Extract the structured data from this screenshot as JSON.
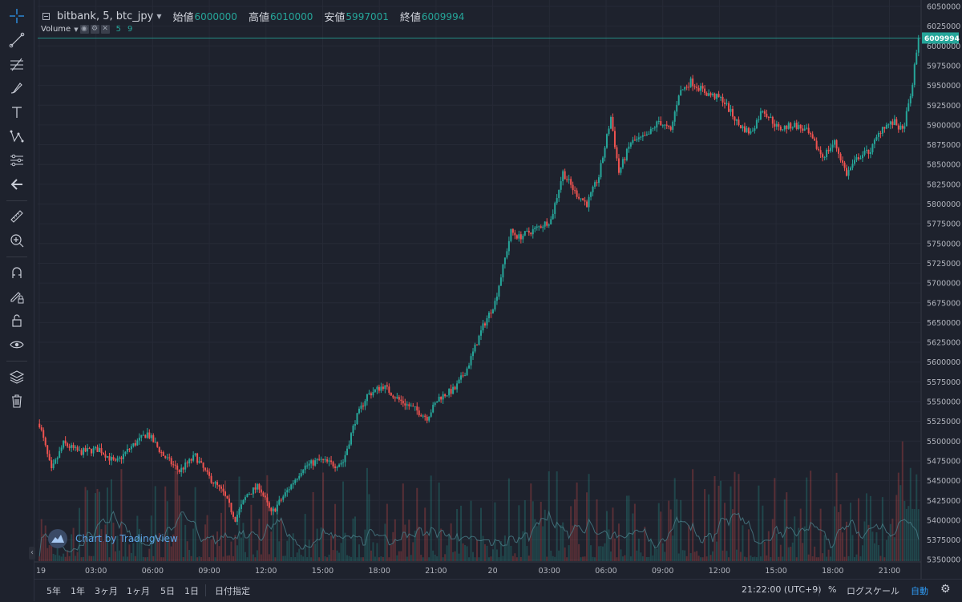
{
  "legend": {
    "symbol": "bitbank, 5, btc_jpy",
    "open_label": "始値",
    "open": "6000000",
    "high_label": "高値",
    "high": "6010000",
    "low_label": "安値",
    "low": "5997001",
    "close_label": "終値",
    "close": "6009994"
  },
  "volume_legend": {
    "label": "Volume",
    "v1": "5",
    "v2": "9"
  },
  "watermark": "Chart by TradingView",
  "price_tag": "6009994",
  "bottom": {
    "ranges": [
      "5年",
      "1年",
      "3ヶ月",
      "1ヶ月",
      "5日",
      "1日"
    ],
    "goto_date": "日付指定",
    "time": "21:22:00 (UTC+9)",
    "percent": "%",
    "log": "ログスケール",
    "auto": "自動"
  },
  "colors": {
    "up": "#26a69a",
    "down": "#ef5350",
    "background": "#1e222d",
    "grid": "#262a36",
    "price_line": "#26a69a"
  },
  "tools": [
    "crosshair-icon",
    "trend-line-icon",
    "fib-icon",
    "brush-icon",
    "text-icon",
    "pattern-icon",
    "prediction-icon",
    "back-arrow-icon",
    "ruler-icon",
    "zoom-in-icon",
    "magnet-icon",
    "lock-drawing-icon",
    "lock-icon",
    "eye-icon",
    "layers-icon",
    "trash-icon"
  ],
  "chart_data": {
    "type": "candlestick",
    "y_ticks": [
      6050000,
      6025000,
      6000000,
      5975000,
      5950000,
      5925000,
      5900000,
      5875000,
      5850000,
      5825000,
      5800000,
      5775000,
      5750000,
      5725000,
      5700000,
      5675000,
      5650000,
      5625000,
      5600000,
      5575000,
      5550000,
      5525000,
      5500000,
      5475000,
      5450000,
      5425000,
      5400000,
      5375000,
      5350000
    ],
    "x_ticks": [
      "19",
      "03:00",
      "06:00",
      "09:00",
      "12:00",
      "15:00",
      "18:00",
      "21:00",
      "20",
      "03:00",
      "06:00",
      "09:00",
      "12:00",
      "15:00",
      "18:00",
      "21:00"
    ],
    "ylim": [
      5340000,
      6060000
    ],
    "last_price": 6009994,
    "close_path": [
      {
        "t": 0,
        "p": 5522000
      },
      {
        "t": 6,
        "p": 5462000
      },
      {
        "t": 12,
        "p": 5497000
      },
      {
        "t": 20,
        "p": 5486000
      },
      {
        "t": 30,
        "p": 5490000
      },
      {
        "t": 38,
        "p": 5472000
      },
      {
        "t": 46,
        "p": 5493000
      },
      {
        "t": 54,
        "p": 5510000
      },
      {
        "t": 62,
        "p": 5482000
      },
      {
        "t": 70,
        "p": 5462000
      },
      {
        "t": 78,
        "p": 5481000
      },
      {
        "t": 84,
        "p": 5457000
      },
      {
        "t": 92,
        "p": 5434000
      },
      {
        "t": 98,
        "p": 5402000
      },
      {
        "t": 104,
        "p": 5433000
      },
      {
        "t": 110,
        "p": 5443000
      },
      {
        "t": 116,
        "p": 5408000
      },
      {
        "t": 124,
        "p": 5437000
      },
      {
        "t": 132,
        "p": 5467000
      },
      {
        "t": 140,
        "p": 5476000
      },
      {
        "t": 148,
        "p": 5470000
      },
      {
        "t": 152,
        "p": 5474000
      },
      {
        "t": 158,
        "p": 5526000
      },
      {
        "t": 164,
        "p": 5558000
      },
      {
        "t": 172,
        "p": 5570000
      },
      {
        "t": 180,
        "p": 5552000
      },
      {
        "t": 188,
        "p": 5540000
      },
      {
        "t": 194,
        "p": 5530000
      },
      {
        "t": 200,
        "p": 5555000
      },
      {
        "t": 208,
        "p": 5566000
      },
      {
        "t": 214,
        "p": 5592000
      },
      {
        "t": 222,
        "p": 5645000
      },
      {
        "t": 228,
        "p": 5676000
      },
      {
        "t": 232,
        "p": 5720000
      },
      {
        "t": 236,
        "p": 5765000
      },
      {
        "t": 240,
        "p": 5758000
      },
      {
        "t": 248,
        "p": 5768000
      },
      {
        "t": 256,
        "p": 5780000
      },
      {
        "t": 262,
        "p": 5840000
      },
      {
        "t": 268,
        "p": 5815000
      },
      {
        "t": 274,
        "p": 5800000
      },
      {
        "t": 280,
        "p": 5835000
      },
      {
        "t": 286,
        "p": 5910000
      },
      {
        "t": 290,
        "p": 5840000
      },
      {
        "t": 296,
        "p": 5878000
      },
      {
        "t": 304,
        "p": 5885000
      },
      {
        "t": 310,
        "p": 5905000
      },
      {
        "t": 316,
        "p": 5892000
      },
      {
        "t": 320,
        "p": 5940000
      },
      {
        "t": 326,
        "p": 5955000
      },
      {
        "t": 334,
        "p": 5940000
      },
      {
        "t": 342,
        "p": 5932000
      },
      {
        "t": 350,
        "p": 5900000
      },
      {
        "t": 356,
        "p": 5890000
      },
      {
        "t": 362,
        "p": 5920000
      },
      {
        "t": 370,
        "p": 5895000
      },
      {
        "t": 378,
        "p": 5900000
      },
      {
        "t": 384,
        "p": 5892000
      },
      {
        "t": 392,
        "p": 5860000
      },
      {
        "t": 398,
        "p": 5878000
      },
      {
        "t": 404,
        "p": 5838000
      },
      {
        "t": 410,
        "p": 5860000
      },
      {
        "t": 416,
        "p": 5868000
      },
      {
        "t": 422,
        "p": 5898000
      },
      {
        "t": 428,
        "p": 5903000
      },
      {
        "t": 432,
        "p": 5892000
      },
      {
        "t": 436,
        "p": 5935000
      },
      {
        "t": 440,
        "p": 6010000
      }
    ]
  }
}
